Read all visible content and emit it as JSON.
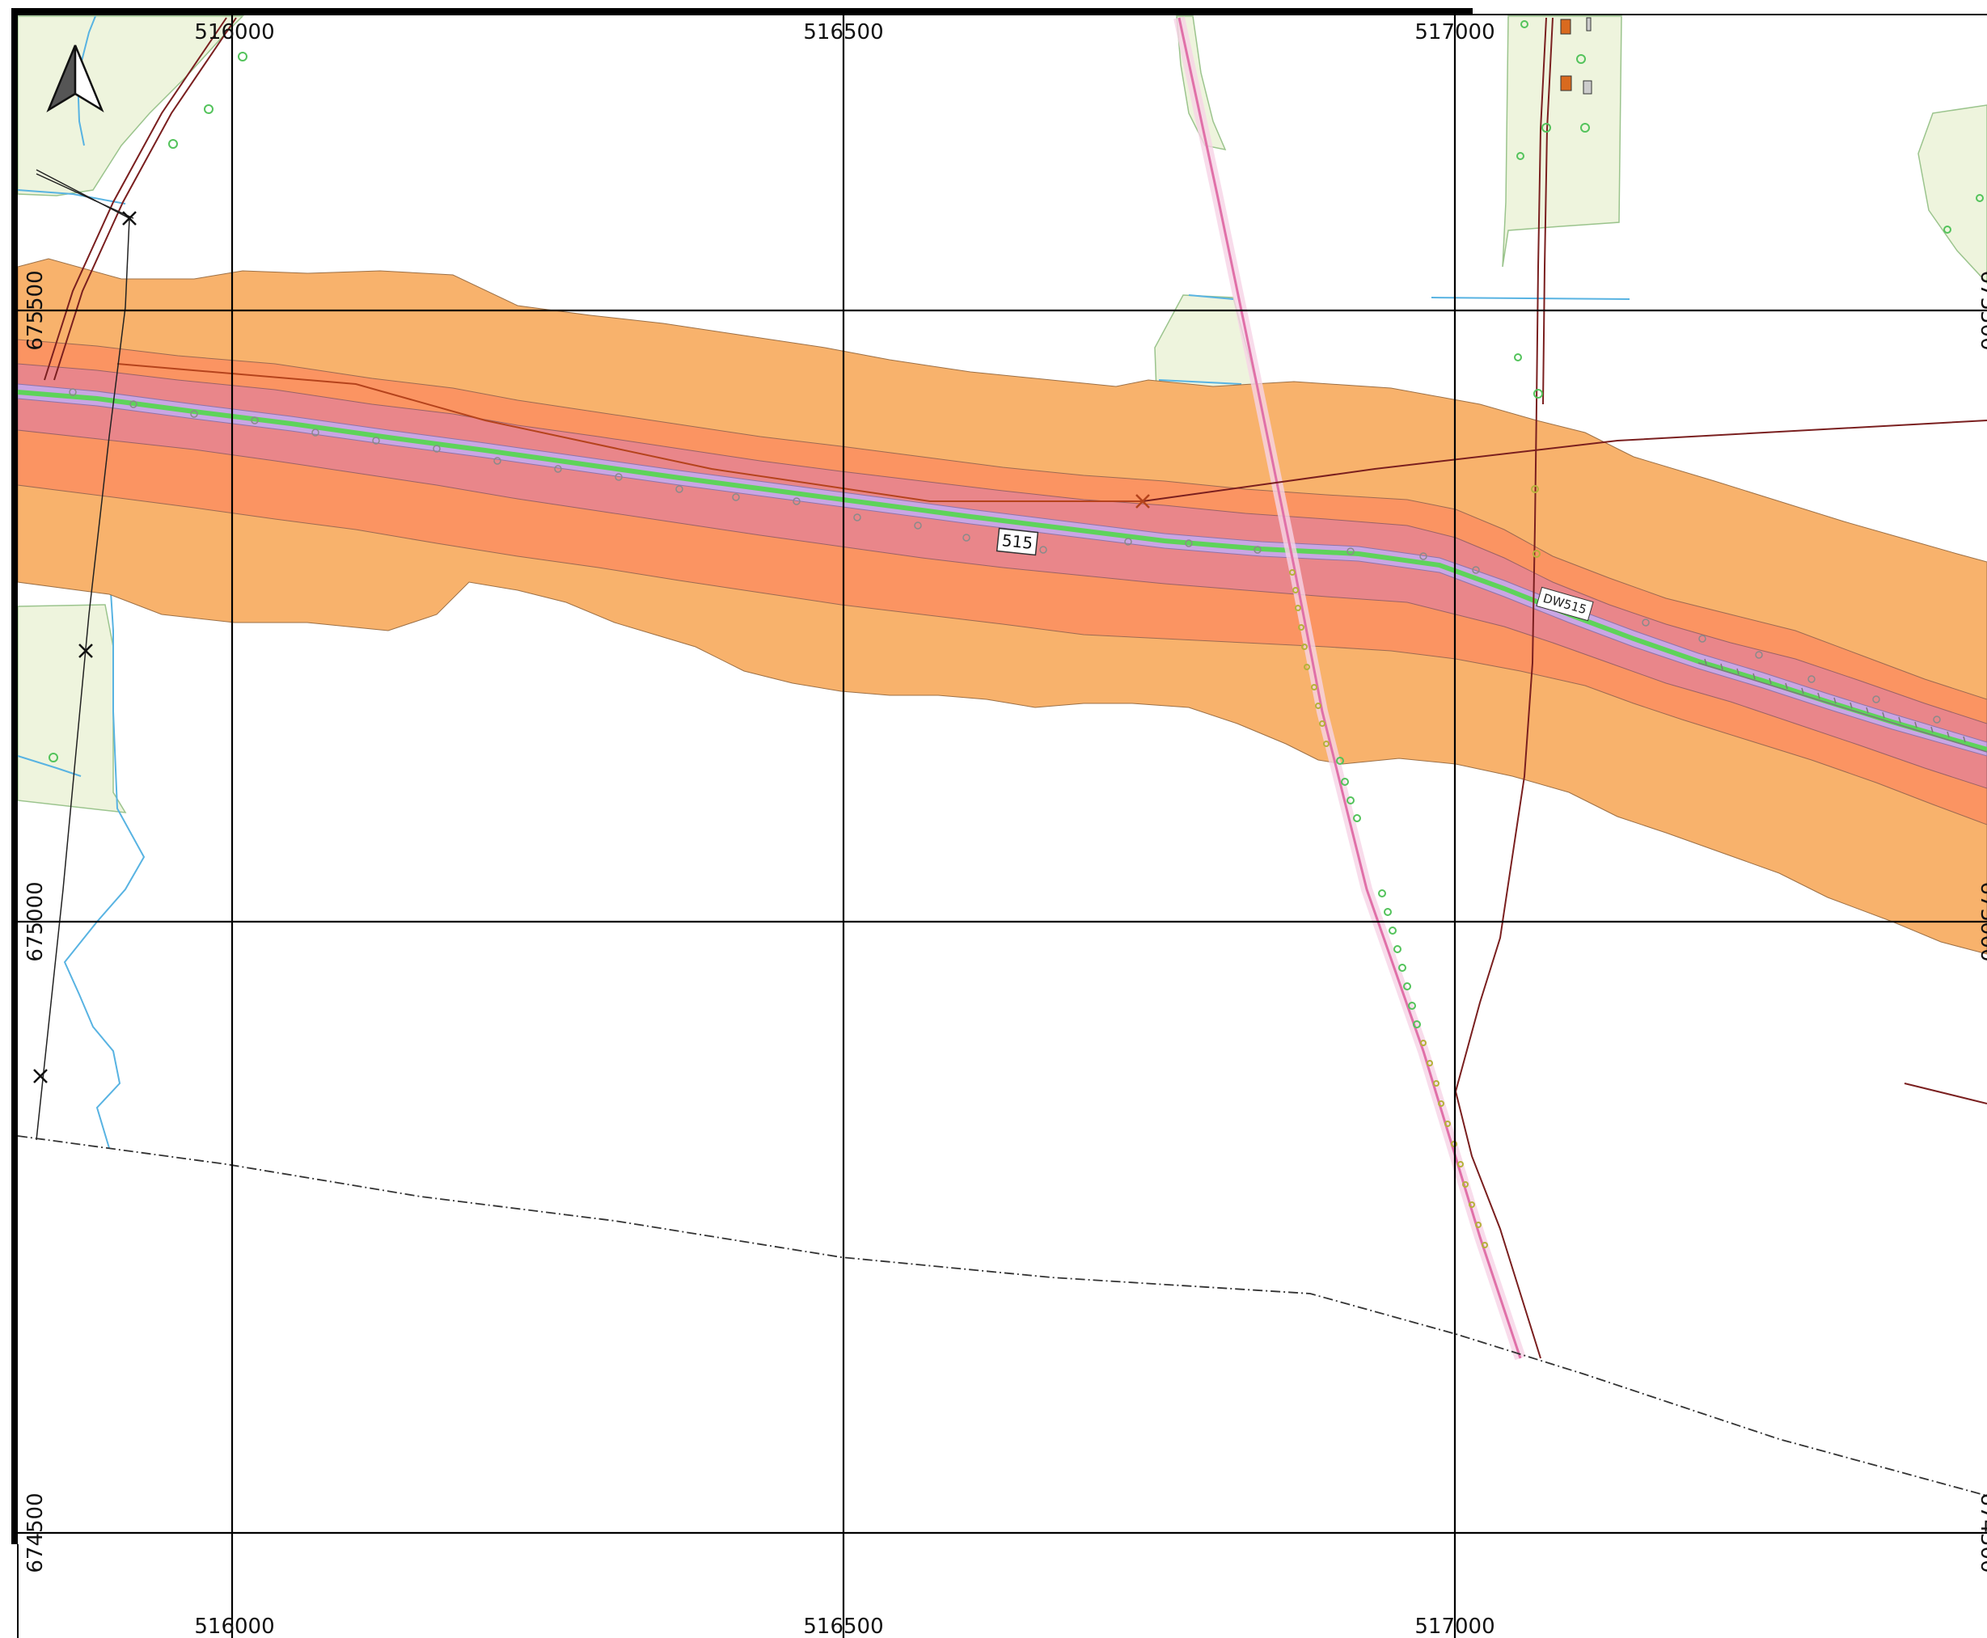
{
  "map": {
    "grid": {
      "x_labels": [
        "516000",
        "516500",
        "517000"
      ],
      "y_labels": [
        "675500",
        "675000",
        "674500"
      ]
    },
    "road_labels": {
      "main_road": "515",
      "side_label": "DW515"
    },
    "north_arrow": "north-arrow-icon",
    "colors": {
      "buffer_outer": "#f8b26c",
      "buffer_middle": "#fb9462",
      "buffer_inner": "#e9868a",
      "road_core": "#c9a6e4",
      "road_center": "#5ed35a",
      "forest": "#eef4dd",
      "water": "#58b3e2",
      "power_line": "#7a1f1f",
      "rail_pink": "#e070a8"
    }
  }
}
